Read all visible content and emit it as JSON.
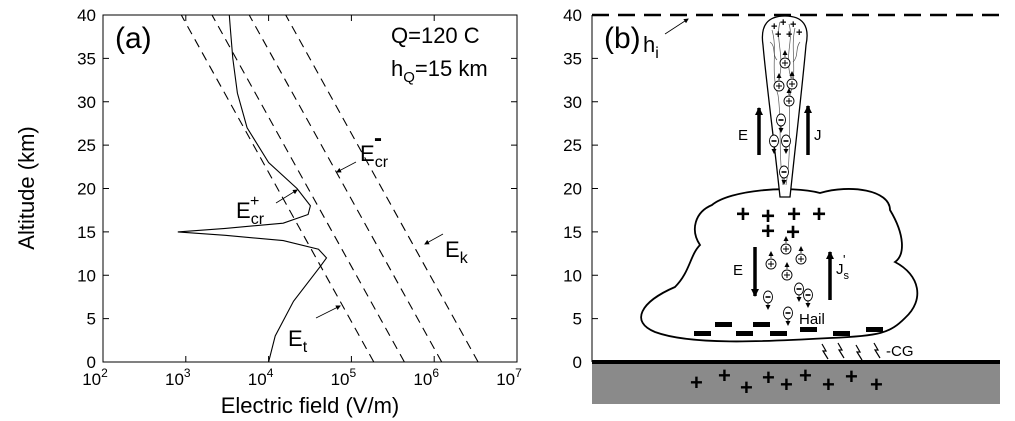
{
  "panel_a": {
    "label": "(a)",
    "xlabel": "Electric field (V/m)",
    "ylabel": "Altitude (km)",
    "annotation_q": "Q=120 C",
    "annotation_h": "h",
    "annotation_h_sub": "Q",
    "annotation_h_val": "=15 km",
    "curve_labels": {
      "Ecr_minus": {
        "base": "E",
        "sub": "cr",
        "sup": "-"
      },
      "Ecr_plus": {
        "base": "E",
        "sub": "cr",
        "sup": "+"
      },
      "Ek": {
        "base": "E",
        "sub": "k"
      },
      "Et": {
        "base": "E",
        "sub": "t"
      }
    },
    "chart_data": {
      "type": "line",
      "xscale": "log",
      "xlim": [
        100,
        10000000
      ],
      "ylim": [
        0,
        40
      ],
      "xtick_exponents": [
        2,
        3,
        4,
        5,
        6,
        7
      ],
      "xtick_base": "10",
      "yticks": [
        0,
        5,
        10,
        15,
        20,
        25,
        30,
        35,
        40
      ],
      "series": [
        {
          "id": "Et",
          "style": "dashed",
          "log10_x_at_0km": 5.27,
          "log10_x_slope_per_km": -0.0581
        },
        {
          "id": "Ecr_plus",
          "style": "dashed",
          "log10_x_at_0km": 5.64,
          "log10_x_slope_per_km": -0.0581
        },
        {
          "id": "Ecr_minus",
          "style": "dashed",
          "log10_x_at_0km": 6.09,
          "log10_x_slope_per_km": -0.0581
        },
        {
          "id": "Ek",
          "style": "dashed",
          "log10_x_at_0km": 6.53,
          "log10_x_slope_per_km": -0.0581
        },
        {
          "id": "E_total",
          "style": "solid",
          "points": [
            [
              10000,
              0
            ],
            [
              12000,
              3
            ],
            [
              20000,
              7
            ],
            [
              42000,
              11
            ],
            [
              50000,
              12
            ],
            [
              40000,
              13
            ],
            [
              15000,
              14
            ],
            [
              3000,
              14.6
            ],
            [
              800,
              15
            ],
            [
              3000,
              15.4
            ],
            [
              15000,
              16
            ],
            [
              30000,
              17
            ],
            [
              32000,
              18
            ],
            [
              22000,
              20
            ],
            [
              10000,
              23
            ],
            [
              5500,
              27
            ],
            [
              4200,
              31
            ],
            [
              3700,
              35
            ],
            [
              3450,
              38.5
            ],
            [
              3350,
              40
            ]
          ]
        }
      ]
    }
  },
  "panel_b": {
    "label": "(b)",
    "hi": {
      "base": "h",
      "sub": "i"
    },
    "E": "E",
    "J": "J",
    "Js": {
      "base": "J",
      "sub": "s",
      "sup": "'"
    },
    "hail": "Hail",
    "cg": "-CG",
    "yticks": [
      0,
      5,
      10,
      15,
      20,
      25,
      30,
      35,
      40
    ]
  }
}
